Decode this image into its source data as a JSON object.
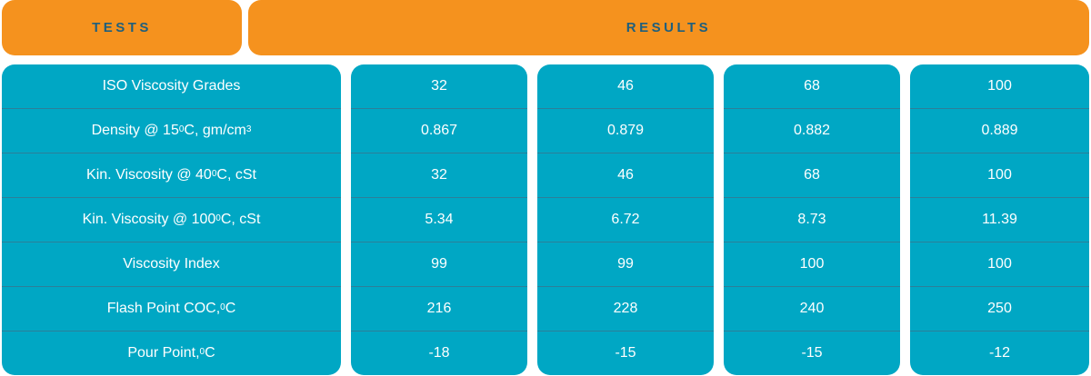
{
  "headers": {
    "tests": "TESTS",
    "results": "RESULTS"
  },
  "tests": [
    {
      "pre": "ISO Viscosity Grades",
      "sup": "",
      "post": ""
    },
    {
      "pre": "Density @ 15 ",
      "sup": "0",
      "post": "C, gm/cm",
      "sup2": "3"
    },
    {
      "pre": "Kin. Viscosity @ 40 ",
      "sup": "0",
      "post": "C, cSt"
    },
    {
      "pre": "Kin. Viscosity @ 100 ",
      "sup": "0",
      "post": "C, cSt"
    },
    {
      "pre": "Viscosity Index",
      "sup": "",
      "post": ""
    },
    {
      "pre": "Flash Point COC, ",
      "sup": "0",
      "post": "C"
    },
    {
      "pre": "Pour Point, ",
      "sup": "0",
      "post": "C"
    }
  ],
  "results": [
    [
      "32",
      "0.867",
      "32",
      "5.34",
      "99",
      "216",
      "-18"
    ],
    [
      "46",
      "0.879",
      "46",
      "6.72",
      "99",
      "228",
      "-15"
    ],
    [
      "68",
      "0.882",
      "68",
      "8.73",
      "100",
      "240",
      "-15"
    ],
    [
      "100",
      "0.889",
      "100",
      "11.39",
      "100",
      "250",
      "-12"
    ]
  ]
}
